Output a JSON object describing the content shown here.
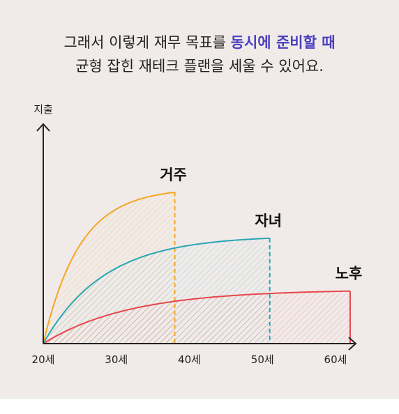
{
  "headline": {
    "line1_prefix": "그래서 이렇게 재무 목표를 ",
    "line1_accent": "동시에 준비할 때",
    "line2": "균형 잡힌 재테크 플랜을 세울 수 있어요."
  },
  "colors": {
    "background": "#f0ebe9",
    "accent_text": "#4b3fbf",
    "housing": "#f5a623",
    "children": "#2aa5b3",
    "retirement": "#e8464a",
    "axis": "#222222"
  },
  "chart_data": {
    "type": "area",
    "title": "",
    "ylabel": "지출",
    "xlabel": "",
    "x_ticks": [
      20,
      30,
      40,
      50,
      60
    ],
    "x_tick_labels": [
      "20세",
      "30세",
      "40세",
      "50세",
      "60세"
    ],
    "xlim": [
      20,
      63
    ],
    "ylim": [
      0,
      100
    ],
    "y_ticks": false,
    "grid": false,
    "series": [
      {
        "name": "거주",
        "key": "housing",
        "start": 20,
        "end": 38,
        "plateau": 72,
        "rate": 0.2
      },
      {
        "name": "자녀",
        "key": "children",
        "start": 20,
        "end": 51,
        "plateau": 50,
        "rate": 0.12
      },
      {
        "name": "노후",
        "key": "retirement",
        "start": 20,
        "end": 62,
        "plateau": 25,
        "rate": 0.085
      }
    ]
  }
}
